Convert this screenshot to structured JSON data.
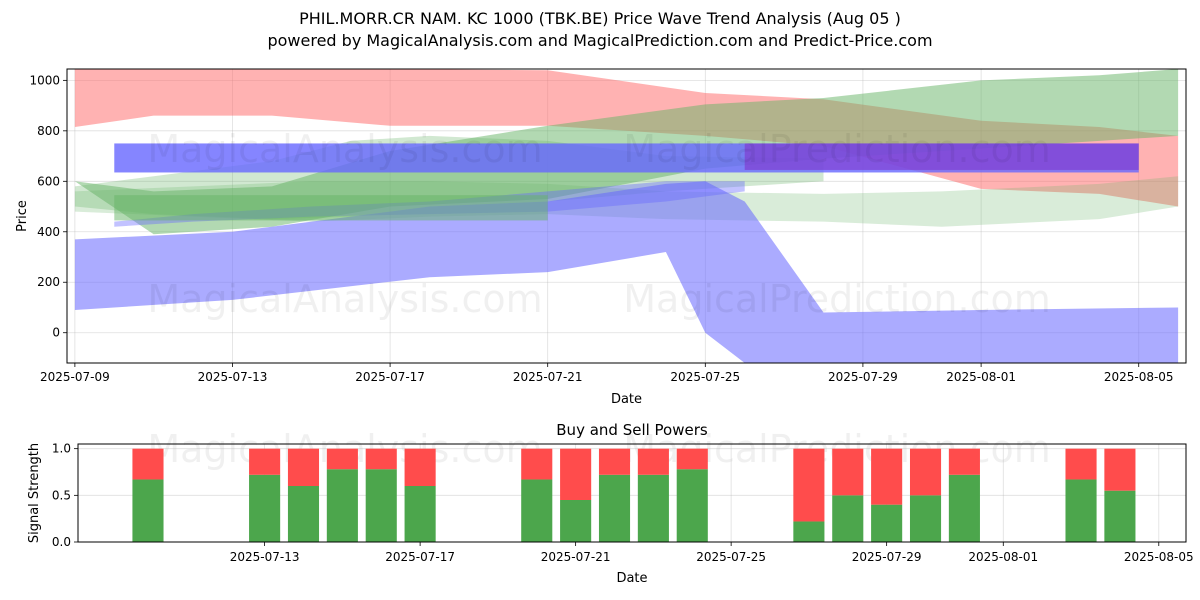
{
  "title": "PHIL.MORR.CR NAM. KC 1000 (TBK.BE) Price Wave Trend Analysis (Aug 05 )",
  "subtitle": "powered by MagicalAnalysis.com and MagicalPrediction.com and Predict-Price.com",
  "watermarks": [
    "MagicalAnalysis.com",
    "MagicalPrediction.com"
  ],
  "chart_data": [
    {
      "type": "area",
      "xlabel": "Date",
      "ylabel": "Price",
      "x_start": "2025-07-09",
      "x_end": "2025-08-06",
      "ylim": [
        -120,
        1045
      ],
      "xticks": [
        "2025-07-09",
        "2025-07-13",
        "2025-07-17",
        "2025-07-21",
        "2025-07-25",
        "2025-07-29",
        "2025-08-01",
        "2025-08-05"
      ],
      "yticks": [
        0,
        200,
        400,
        600,
        800,
        1000
      ],
      "grid": true,
      "colors": {
        "red": "#ff6666",
        "green": "#66b366",
        "blue": "#6666ff",
        "purple": "#8033cc"
      },
      "bands": [
        {
          "color": "red",
          "opacity": 0.5,
          "x": [
            "2025-07-09",
            "2025-07-11",
            "2025-07-14",
            "2025-07-17",
            "2025-07-21",
            "2025-07-25",
            "2025-07-28",
            "2025-08-01",
            "2025-08-04",
            "2025-08-06"
          ],
          "upper": [
            1045,
            1045,
            1045,
            1045,
            1040,
            950,
            925,
            840,
            815,
            780
          ],
          "lower": [
            815,
            860,
            860,
            820,
            820,
            780,
            740,
            570,
            550,
            500
          ]
        },
        {
          "color": "green",
          "opacity": 0.5,
          "x": [
            "2025-07-09",
            "2025-07-11",
            "2025-07-14",
            "2025-07-17",
            "2025-07-21",
            "2025-07-25",
            "2025-07-28",
            "2025-08-01",
            "2025-08-04",
            "2025-08-06"
          ],
          "upper": [
            600,
            560,
            580,
            720,
            820,
            905,
            930,
            1000,
            1020,
            1045
          ],
          "lower": [
            600,
            390,
            420,
            500,
            530,
            650,
            690,
            730,
            760,
            780
          ]
        },
        {
          "color": "green",
          "opacity": 0.25,
          "x": [
            "2025-07-09",
            "2025-07-12",
            "2025-07-15",
            "2025-07-18",
            "2025-07-21",
            "2025-07-24",
            "2025-07-28",
            "2025-07-31",
            "2025-08-04",
            "2025-08-06"
          ],
          "upper": [
            560,
            580,
            600,
            600,
            590,
            560,
            550,
            560,
            590,
            620
          ],
          "lower": [
            480,
            460,
            440,
            460,
            470,
            450,
            440,
            420,
            450,
            500
          ]
        },
        {
          "color": "green",
          "opacity": 0.3,
          "x": [
            "2025-07-09",
            "2025-07-11",
            "2025-07-14",
            "2025-07-16",
            "2025-07-18",
            "2025-07-21",
            "2025-07-24",
            "2025-07-28"
          ],
          "upper": [
            580,
            620,
            680,
            760,
            780,
            760,
            700,
            690
          ],
          "lower": [
            500,
            470,
            450,
            460,
            500,
            520,
            560,
            600
          ]
        },
        {
          "color": "blue",
          "opacity": 0.55,
          "x": [
            "2025-07-09",
            "2025-07-13",
            "2025-07-18",
            "2025-07-21",
            "2025-07-24",
            "2025-07-25",
            "2025-07-26",
            "2025-07-28",
            "2025-08-01",
            "2025-08-06"
          ],
          "upper": [
            370,
            400,
            500,
            520,
            590,
            600,
            520,
            80,
            90,
            100
          ],
          "lower": [
            90,
            130,
            220,
            240,
            320,
            0,
            -120,
            -120,
            -120,
            -120
          ]
        },
        {
          "color": "blue",
          "opacity": 0.4,
          "x": [
            "2025-07-10",
            "2025-07-12",
            "2025-07-15",
            "2025-07-18",
            "2025-07-21",
            "2025-07-24",
            "2025-07-26"
          ],
          "upper": [
            440,
            470,
            500,
            520,
            560,
            600,
            600
          ],
          "lower": [
            420,
            440,
            460,
            470,
            480,
            520,
            560
          ]
        }
      ],
      "bars": [
        {
          "color": "blue",
          "opacity": 0.8,
          "x0": "2025-07-10",
          "x1": "2025-08-05",
          "value_low": 635,
          "value_high": 750
        },
        {
          "color": "purple",
          "opacity": 0.6,
          "x0": "2025-07-26",
          "x1": "2025-08-05",
          "value_low": 645,
          "value_high": 750
        },
        {
          "color": "green",
          "opacity": 0.5,
          "x0": "2025-07-10",
          "x1": "2025-07-21",
          "value_low": 445,
          "value_high": 545
        }
      ]
    },
    {
      "type": "bar",
      "title": "Buy and Sell Powers",
      "xlabel": "Date",
      "ylabel": "Signal Strength",
      "ylim": [
        0,
        1.05
      ],
      "yticks": [
        0.0,
        0.5,
        1.0
      ],
      "xticks": [
        "2025-07-13",
        "2025-07-17",
        "2025-07-21",
        "2025-07-25",
        "2025-07-29",
        "2025-08-01",
        "2025-08-05"
      ],
      "categories": [
        "2025-07-10",
        "2025-07-13",
        "2025-07-14",
        "2025-07-15",
        "2025-07-16",
        "2025-07-17",
        "2025-07-20",
        "2025-07-21",
        "2025-07-22",
        "2025-07-23",
        "2025-07-24",
        "2025-07-27",
        "2025-07-28",
        "2025-07-29",
        "2025-07-30",
        "2025-07-31",
        "2025-08-03",
        "2025-08-04"
      ],
      "series": [
        {
          "color": "green",
          "values": [
            0.67,
            0.72,
            0.6,
            0.78,
            0.78,
            0.6,
            0.67,
            0.45,
            0.72,
            0.72,
            0.78,
            0.22,
            0.5,
            0.4,
            0.5,
            0.72,
            0.67,
            0.55
          ]
        },
        {
          "color": "red",
          "values": [
            0.33,
            0.28,
            0.4,
            0.22,
            0.22,
            0.4,
            0.33,
            0.55,
            0.28,
            0.28,
            0.22,
            0.78,
            0.5,
            0.6,
            0.5,
            0.28,
            0.33,
            0.45
          ]
        }
      ]
    }
  ]
}
